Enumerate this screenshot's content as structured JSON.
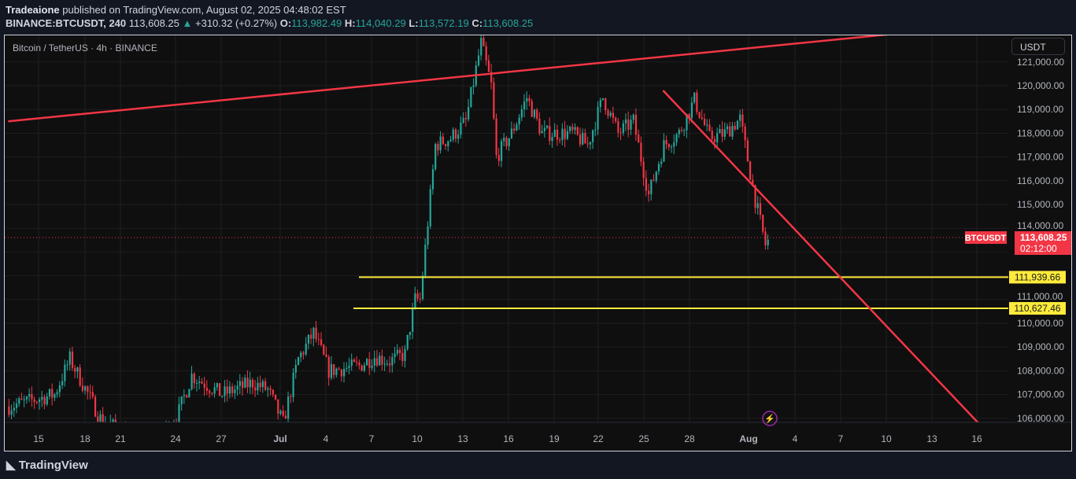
{
  "header": {
    "publisher": "Tradeaione",
    "published_text": "published on TradingView.com, August 02, 2025 04:48:02 EST",
    "symbol": "BINANCE:BTCUSDT, 240",
    "price": "113,608.25",
    "change": "+310.32 (+0.27%)",
    "o_label": "O:",
    "o": "113,982.49",
    "h_label": "H:",
    "h": "114,040.29",
    "l_label": "L:",
    "l": "113,572.19",
    "c_label": "C:",
    "c": "113,608.25"
  },
  "chart_legend": "Bitcoin / TetherUS · 4h · BINANCE",
  "currency_button": "USDT",
  "footer_brand": "TradingView",
  "colors": {
    "up": "#26a69a",
    "down": "#f23645",
    "level": "#ffeb3b",
    "trendline": "#f23645",
    "background": "#0f0f0f"
  },
  "chart_data": {
    "type": "candlestick",
    "interval": "4h",
    "ylim": [
      105500,
      122600
    ],
    "y_ticks": [
      "121,000.00",
      "120,000.00",
      "119,000.00",
      "118,000.00",
      "117,000.00",
      "116,000.00",
      "115,000.00",
      "114,000.00",
      "111,000.00",
      "110,000.00",
      "109,000.00",
      "108,000.00",
      "107,000.00",
      "106,000.00"
    ],
    "x_ticks": [
      "15",
      "18",
      "21",
      "24",
      "27",
      "Jul",
      "4",
      "7",
      "10",
      "13",
      "16",
      "19",
      "22",
      "25",
      "28",
      "Aug",
      "4",
      "7",
      "10",
      "13",
      "16"
    ],
    "approx_close_path": [
      [
        "2025-06-13",
        106500
      ],
      [
        "2025-06-16",
        107000
      ],
      [
        "2025-06-17",
        108500
      ],
      [
        "2025-06-19",
        106000
      ],
      [
        "2025-06-22",
        104800
      ],
      [
        "2025-06-24",
        106000
      ],
      [
        "2025-06-25",
        107800
      ],
      [
        "2025-06-27",
        107000
      ],
      [
        "2025-06-29",
        107500
      ],
      [
        "2025-06-30",
        107200
      ],
      [
        "2025-07-01",
        105800
      ],
      [
        "2025-07-02",
        108500
      ],
      [
        "2025-07-03",
        109600
      ],
      [
        "2025-07-04",
        108000
      ],
      [
        "2025-07-06",
        108200
      ],
      [
        "2025-07-07",
        108600
      ],
      [
        "2025-07-08",
        108400
      ],
      [
        "2025-07-09",
        108700
      ],
      [
        "2025-07-09T16",
        111000
      ],
      [
        "2025-07-10",
        111000
      ],
      [
        "2025-07-11",
        117500
      ],
      [
        "2025-07-12",
        117800
      ],
      [
        "2025-07-13",
        118500
      ],
      [
        "2025-07-14",
        121800
      ],
      [
        "2025-07-14T16",
        120000
      ],
      [
        "2025-07-15",
        117000
      ],
      [
        "2025-07-16",
        118000
      ],
      [
        "2025-07-17",
        119500
      ],
      [
        "2025-07-18",
        118000
      ],
      [
        "2025-07-20",
        118000
      ],
      [
        "2025-07-21",
        117500
      ],
      [
        "2025-07-22",
        119500
      ],
      [
        "2025-07-23",
        118000
      ],
      [
        "2025-07-24",
        118500
      ],
      [
        "2025-07-25",
        115400
      ],
      [
        "2025-07-26",
        117500
      ],
      [
        "2025-07-27",
        118000
      ],
      [
        "2025-07-28",
        119400
      ],
      [
        "2025-07-29",
        117800
      ],
      [
        "2025-07-30",
        118000
      ],
      [
        "2025-07-31",
        118600
      ],
      [
        "2025-08-01",
        115200
      ],
      [
        "2025-08-01T16",
        113300
      ],
      [
        "2025-08-02",
        113608.25
      ]
    ],
    "last_price_label": {
      "symbol": "BTCUSDT",
      "price": "113,608.25",
      "countdown": "02:12:00"
    },
    "horizontal_levels": [
      {
        "value": 111939.66,
        "label": "111,939.66"
      },
      {
        "value": 110627.46,
        "label": "110,627.46"
      }
    ],
    "trendlines": [
      {
        "from": [
          "2025-06-13",
          118500
        ],
        "to": [
          "2025-08-12",
          122300
        ]
      },
      {
        "from": [
          "2025-07-26",
          119800
        ],
        "to": [
          "2025-08-16",
          105600
        ]
      }
    ]
  }
}
